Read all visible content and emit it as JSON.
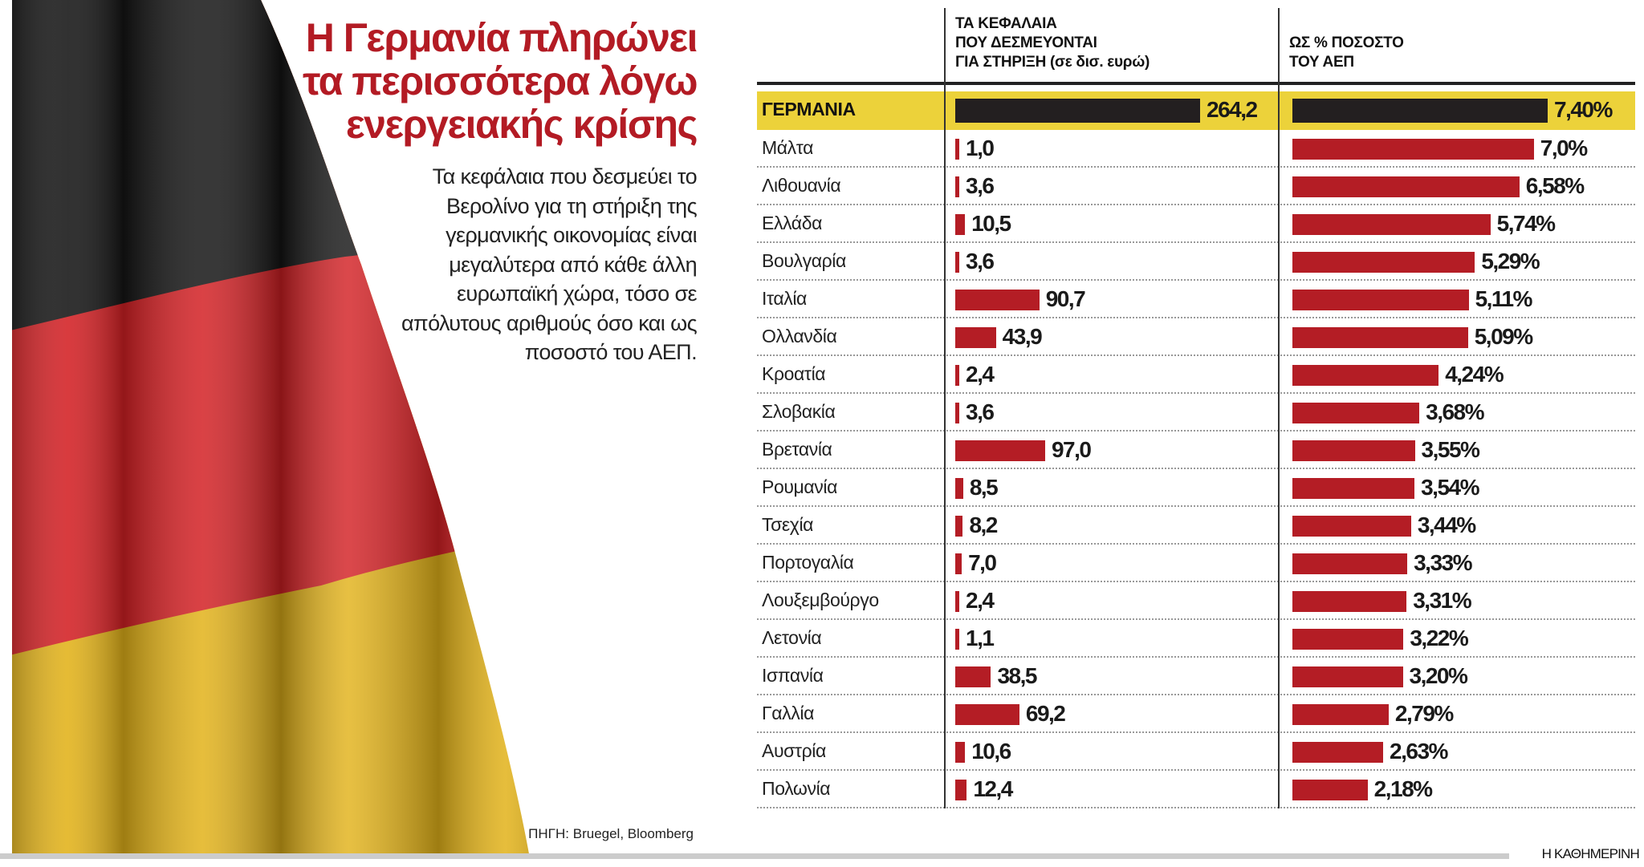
{
  "title": "Η Γερμανία πληρώνει τα περισσότερα λόγω ενεργειακής κρίσης",
  "subtitle": "Τα κεφάλαια που δεσμεύει το Βερολίνο για τη στήριξη της γερμανικής οικονομίας είναι μεγαλύτερα από κάθε άλλη ευρωπαϊκή χώρα, τόσο σε απόλυτους αριθμούς όσο και ως ποσοστό του ΑΕΠ.",
  "source": "ΠΗΓΗ: Bruegel, Bloomberg",
  "brand": "Η ΚΑΘΗΜΕΡΙΝΗ",
  "colors": {
    "highlight_row": "#ecd23a",
    "highlight_bar": "#231f20",
    "bar": "#b41d25",
    "title": "#b31b24"
  },
  "chart_data": {
    "type": "bar",
    "orientation": "horizontal",
    "columns": [
      {
        "header": [
          "ΤΑ ΚΕΦΑΛΑΙΑ",
          "ΠΟΥ ΔΕΣΜΕΥΟΝΤΑΙ",
          "ΓΙΑ ΣΤΗΡΙΞΗ (σε δισ. ευρώ)"
        ],
        "key": "funds"
      },
      {
        "header": [
          "ΩΣ % ΠΟΣΟΣΤΟ",
          "ΤΟΥ ΑΕΠ"
        ],
        "key": "gdp"
      }
    ],
    "highlight": "ΓΕΡΜΑΝΙΑ",
    "rows": [
      {
        "country": "ΓΕΡΜΑΝΙΑ",
        "funds": 264.2,
        "funds_label": "264,2",
        "gdp": 7.4,
        "gdp_label": "7,40%"
      },
      {
        "country": "Μάλτα",
        "funds": 1.0,
        "funds_label": "1,0",
        "gdp": 7.0,
        "gdp_label": "7,0%"
      },
      {
        "country": "Λιθουανία",
        "funds": 3.6,
        "funds_label": "3,6",
        "gdp": 6.58,
        "gdp_label": "6,58%"
      },
      {
        "country": "Ελλάδα",
        "funds": 10.5,
        "funds_label": "10,5",
        "gdp": 5.74,
        "gdp_label": "5,74%"
      },
      {
        "country": "Βουλγαρία",
        "funds": 3.6,
        "funds_label": "3,6",
        "gdp": 5.29,
        "gdp_label": "5,29%"
      },
      {
        "country": "Ιταλία",
        "funds": 90.7,
        "funds_label": "90,7",
        "gdp": 5.11,
        "gdp_label": "5,11%"
      },
      {
        "country": "Ολλανδία",
        "funds": 43.9,
        "funds_label": "43,9",
        "gdp": 5.09,
        "gdp_label": "5,09%"
      },
      {
        "country": "Κροατία",
        "funds": 2.4,
        "funds_label": "2,4",
        "gdp": 4.24,
        "gdp_label": "4,24%"
      },
      {
        "country": "Σλοβακία",
        "funds": 3.6,
        "funds_label": "3,6",
        "gdp": 3.68,
        "gdp_label": "3,68%"
      },
      {
        "country": "Βρετανία",
        "funds": 97.0,
        "funds_label": "97,0",
        "gdp": 3.55,
        "gdp_label": "3,55%"
      },
      {
        "country": "Ρουμανία",
        "funds": 8.5,
        "funds_label": "8,5",
        "gdp": 3.54,
        "gdp_label": "3,54%"
      },
      {
        "country": "Τσεχία",
        "funds": 8.2,
        "funds_label": "8,2",
        "gdp": 3.44,
        "gdp_label": "3,44%"
      },
      {
        "country": "Πορτογαλία",
        "funds": 7.0,
        "funds_label": "7,0",
        "gdp": 3.33,
        "gdp_label": "3,33%"
      },
      {
        "country": "Λουξεμβούργο",
        "funds": 2.4,
        "funds_label": "2,4",
        "gdp": 3.31,
        "gdp_label": "3,31%"
      },
      {
        "country": "Λετονία",
        "funds": 1.1,
        "funds_label": "1,1",
        "gdp": 3.22,
        "gdp_label": "3,22%"
      },
      {
        "country": "Ισπανία",
        "funds": 38.5,
        "funds_label": "38,5",
        "gdp": 3.2,
        "gdp_label": "3,20%"
      },
      {
        "country": "Γαλλία",
        "funds": 69.2,
        "funds_label": "69,2",
        "gdp": 2.79,
        "gdp_label": "2,79%"
      },
      {
        "country": "Αυστρία",
        "funds": 10.6,
        "funds_label": "10,6",
        "gdp": 2.63,
        "gdp_label": "2,63%"
      },
      {
        "country": "Πολωνία",
        "funds": 12.4,
        "funds_label": "12,4",
        "gdp": 2.18,
        "gdp_label": "2,18%"
      }
    ]
  }
}
